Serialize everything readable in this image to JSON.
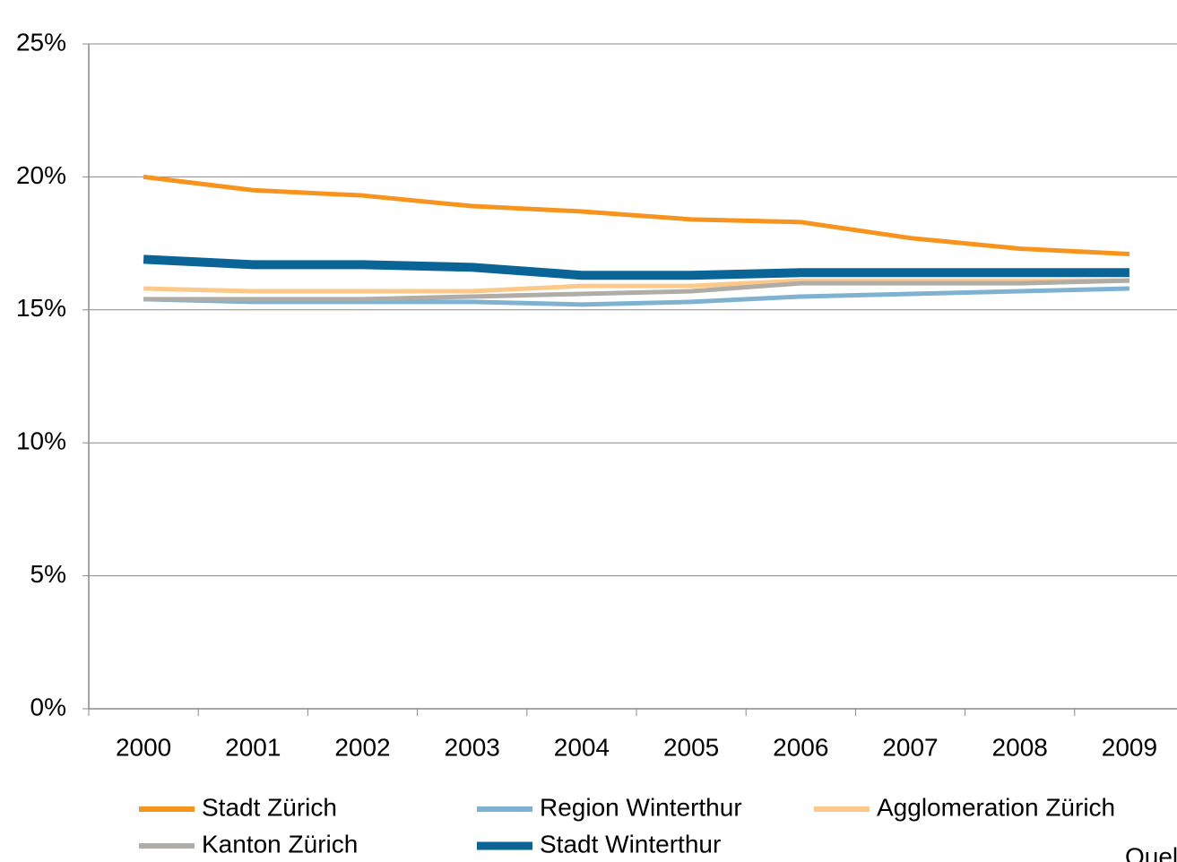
{
  "chart_data": {
    "type": "line",
    "categories": [
      "2000",
      "2001",
      "2002",
      "2003",
      "2004",
      "2005",
      "2006",
      "2007",
      "2008",
      "2009"
    ],
    "series": [
      {
        "name": "Stadt Zürich",
        "color": "#f7941d",
        "values": [
          20.0,
          19.5,
          19.3,
          18.9,
          18.7,
          18.4,
          18.3,
          17.7,
          17.3,
          17.1
        ]
      },
      {
        "name": "Region Winterthur",
        "color": "#7fb2d0",
        "values": [
          15.4,
          15.3,
          15.3,
          15.3,
          15.2,
          15.3,
          15.5,
          15.6,
          15.7,
          15.8
        ]
      },
      {
        "name": "Agglomeration Zürich",
        "color": "#fdc98a",
        "values": [
          15.8,
          15.7,
          15.7,
          15.7,
          15.9,
          15.9,
          16.1,
          16.1,
          16.1,
          16.1
        ]
      },
      {
        "name": "Kanton Zürich",
        "color": "#b0aca6",
        "values": [
          15.4,
          15.4,
          15.4,
          15.5,
          15.6,
          15.7,
          16.0,
          16.0,
          16.0,
          16.1
        ]
      },
      {
        "name": "Stadt Winterthur",
        "color": "#0a6496",
        "values": [
          16.9,
          16.7,
          16.7,
          16.6,
          16.3,
          16.3,
          16.4,
          16.4,
          16.4,
          16.4
        ]
      }
    ],
    "ylim": [
      0,
      25
    ],
    "yticks": [
      {
        "value": 0,
        "label": "0%"
      },
      {
        "value": 5,
        "label": "5%"
      },
      {
        "value": 10,
        "label": "10%"
      },
      {
        "value": 15,
        "label": "15%"
      },
      {
        "value": 20,
        "label": "20%"
      },
      {
        "value": 25,
        "label": "25%"
      }
    ],
    "grid": true,
    "source": "Quel"
  }
}
